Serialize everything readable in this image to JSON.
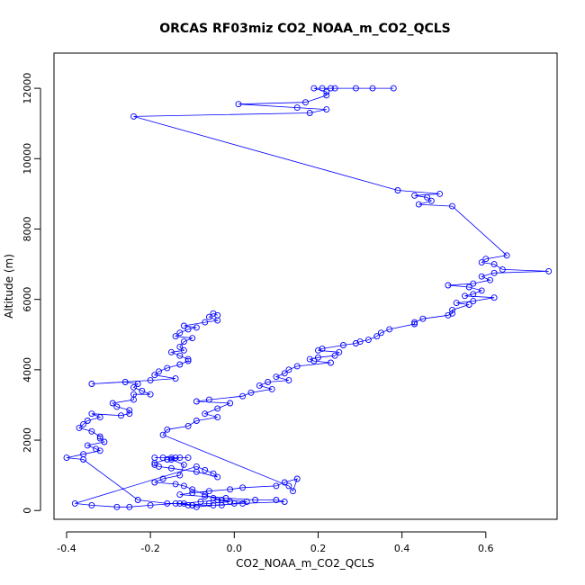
{
  "chart_data": {
    "type": "line",
    "title": "ORCAS RF03miz CO2_NOAA_m_CO2_QCLS",
    "xlabel": "CO2_NOAA_m_CO2_QCLS",
    "ylabel": "Altitude (m)",
    "xlim": [
      -0.43,
      0.77
    ],
    "ylim": [
      -250,
      13000
    ],
    "x_ticks": [
      -0.4,
      -0.2,
      0.0,
      0.2,
      0.4,
      0.6
    ],
    "x_tick_labels": [
      "-0.4",
      "-0.2",
      "0.0",
      "0.2",
      "0.4",
      "0.6"
    ],
    "y_ticks": [
      0,
      2000,
      4000,
      6000,
      8000,
      10000,
      12000
    ],
    "y_tick_labels": [
      "0",
      "2000",
      "4000",
      "6000",
      "8000",
      "10000",
      "12000"
    ],
    "grid": false,
    "legend": "none",
    "series": [
      {
        "color": "#0000ff",
        "marker": "open-circle",
        "points": [
          [
            0.38,
            12000
          ],
          [
            0.33,
            12000
          ],
          [
            0.29,
            12000
          ],
          [
            0.24,
            12000
          ],
          [
            0.23,
            12000
          ],
          [
            0.21,
            12000
          ],
          [
            0.19,
            12000
          ],
          [
            0.22,
            11900
          ],
          [
            0.22,
            11800
          ],
          [
            0.17,
            11600
          ],
          [
            0.01,
            11550
          ],
          [
            0.15,
            11450
          ],
          [
            0.22,
            11400
          ],
          [
            0.18,
            11300
          ],
          [
            -0.24,
            11200
          ],
          [
            0.39,
            9100
          ],
          [
            0.49,
            9000
          ],
          [
            0.43,
            8950
          ],
          [
            0.46,
            8900
          ],
          [
            0.47,
            8800
          ],
          [
            0.44,
            8700
          ],
          [
            0.52,
            8650
          ],
          [
            0.65,
            7250
          ],
          [
            0.6,
            7150
          ],
          [
            0.59,
            7050
          ],
          [
            0.62,
            7000
          ],
          [
            0.64,
            6850
          ],
          [
            0.75,
            6800
          ],
          [
            0.62,
            6750
          ],
          [
            0.59,
            6650
          ],
          [
            0.61,
            6550
          ],
          [
            0.57,
            6450
          ],
          [
            0.51,
            6400
          ],
          [
            0.56,
            6350
          ],
          [
            0.59,
            6250
          ],
          [
            0.57,
            6150
          ],
          [
            0.55,
            6100
          ],
          [
            0.62,
            6050
          ],
          [
            0.57,
            5950
          ],
          [
            0.53,
            5900
          ],
          [
            0.56,
            5850
          ],
          [
            0.52,
            5700
          ],
          [
            0.52,
            5600
          ],
          [
            0.51,
            5550
          ],
          [
            0.45,
            5450
          ],
          [
            0.43,
            5350
          ],
          [
            0.43,
            5300
          ],
          [
            0.37,
            5150
          ],
          [
            0.35,
            5050
          ],
          [
            0.34,
            4950
          ],
          [
            0.32,
            4850
          ],
          [
            0.3,
            4800
          ],
          [
            0.29,
            4750
          ],
          [
            0.26,
            4700
          ],
          [
            0.21,
            4600
          ],
          [
            0.2,
            4550
          ],
          [
            0.25,
            4500
          ],
          [
            0.24,
            4400
          ],
          [
            0.2,
            4350
          ],
          [
            0.18,
            4300
          ],
          [
            0.19,
            4250
          ],
          [
            0.23,
            4200
          ],
          [
            0.15,
            4100
          ],
          [
            0.13,
            4000
          ],
          [
            0.12,
            3900
          ],
          [
            0.1,
            3800
          ],
          [
            0.13,
            3700
          ],
          [
            0.08,
            3650
          ],
          [
            0.06,
            3550
          ],
          [
            0.09,
            3450
          ],
          [
            0.04,
            3350
          ],
          [
            0.02,
            3250
          ],
          [
            -0.06,
            3150
          ],
          [
            -0.09,
            3100
          ],
          [
            -0.01,
            3050
          ],
          [
            -0.04,
            2900
          ],
          [
            -0.07,
            2750
          ],
          [
            -0.04,
            2650
          ],
          [
            -0.09,
            2550
          ],
          [
            -0.11,
            2400
          ],
          [
            -0.16,
            2300
          ],
          [
            -0.17,
            2150
          ],
          [
            0.13,
            700
          ],
          [
            0.14,
            550
          ],
          [
            0.15,
            900
          ],
          [
            0.12,
            800
          ],
          [
            0.1,
            700
          ],
          [
            0.02,
            650
          ],
          [
            -0.01,
            600
          ],
          [
            -0.06,
            550
          ],
          [
            -0.1,
            500
          ],
          [
            -0.13,
            450
          ],
          [
            -0.07,
            400
          ],
          [
            -0.02,
            350
          ],
          [
            0.05,
            300
          ],
          [
            0.1,
            300
          ],
          [
            0.12,
            250
          ],
          [
            0.02,
            200
          ],
          [
            -0.05,
            150
          ],
          [
            -0.09,
            100
          ],
          [
            -0.1,
            150
          ],
          [
            -0.13,
            200
          ],
          [
            -0.08,
            250
          ],
          [
            -0.04,
            300
          ],
          [
            -0.01,
            250
          ],
          [
            -0.06,
            200
          ],
          [
            -0.11,
            150
          ],
          [
            -0.14,
            200
          ],
          [
            -0.2,
            150
          ],
          [
            -0.25,
            100
          ],
          [
            -0.28,
            100
          ],
          [
            -0.34,
            150
          ],
          [
            -0.38,
            200
          ],
          [
            -0.09,
            1250
          ],
          [
            -0.07,
            1150
          ],
          [
            -0.05,
            1050
          ],
          [
            -0.04,
            950
          ],
          [
            -0.09,
            1100
          ],
          [
            -0.15,
            1200
          ],
          [
            -0.18,
            1250
          ],
          [
            -0.19,
            1300
          ],
          [
            -0.19,
            1350
          ],
          [
            -0.16,
            1450
          ],
          [
            -0.14,
            1500
          ],
          [
            -0.15,
            1500
          ],
          [
            -0.17,
            1500
          ],
          [
            -0.19,
            1500
          ],
          [
            -0.11,
            1500
          ],
          [
            -0.13,
            1500
          ],
          [
            -0.15,
            1450
          ],
          [
            -0.12,
            1300
          ],
          [
            -0.13,
            1000
          ],
          [
            -0.17,
            900
          ],
          [
            -0.19,
            800
          ],
          [
            -0.14,
            750
          ],
          [
            -0.12,
            700
          ],
          [
            -0.1,
            600
          ],
          [
            -0.07,
            450
          ],
          [
            -0.05,
            350
          ],
          [
            -0.03,
            300
          ],
          [
            0.03,
            250
          ],
          [
            0.0,
            200
          ],
          [
            -0.03,
            150
          ],
          [
            -0.1,
            150
          ],
          [
            -0.12,
            200
          ],
          [
            -0.16,
            200
          ],
          [
            -0.23,
            300
          ],
          [
            -0.36,
            1450
          ],
          [
            -0.4,
            1500
          ],
          [
            -0.36,
            1600
          ],
          [
            -0.32,
            1700
          ],
          [
            -0.33,
            1750
          ],
          [
            -0.35,
            1850
          ],
          [
            -0.31,
            1950
          ],
          [
            -0.32,
            2050
          ],
          [
            -0.32,
            2100
          ],
          [
            -0.34,
            2250
          ],
          [
            -0.37,
            2350
          ],
          [
            -0.36,
            2450
          ],
          [
            -0.35,
            2550
          ],
          [
            -0.32,
            2650
          ],
          [
            -0.34,
            2750
          ],
          [
            -0.27,
            2700
          ],
          [
            -0.25,
            2750
          ],
          [
            -0.25,
            2850
          ],
          [
            -0.28,
            2950
          ],
          [
            -0.29,
            3050
          ],
          [
            -0.24,
            3150
          ],
          [
            -0.24,
            3300
          ],
          [
            -0.2,
            3300
          ],
          [
            -0.22,
            3400
          ],
          [
            -0.24,
            3500
          ],
          [
            -0.23,
            3600
          ],
          [
            -0.26,
            3650
          ],
          [
            -0.34,
            3600
          ],
          [
            -0.2,
            3700
          ],
          [
            -0.14,
            3750
          ],
          [
            -0.19,
            3850
          ],
          [
            -0.18,
            3950
          ],
          [
            -0.16,
            4050
          ],
          [
            -0.13,
            4150
          ],
          [
            -0.11,
            4250
          ],
          [
            -0.11,
            4300
          ],
          [
            -0.13,
            4400
          ],
          [
            -0.15,
            4500
          ],
          [
            -0.12,
            4550
          ],
          [
            -0.13,
            4650
          ],
          [
            -0.12,
            4800
          ],
          [
            -0.1,
            4900
          ],
          [
            -0.14,
            4950
          ],
          [
            -0.13,
            5050
          ],
          [
            -0.11,
            5150
          ],
          [
            -0.09,
            5200
          ],
          [
            -0.12,
            5250
          ],
          [
            -0.07,
            5350
          ],
          [
            -0.04,
            5400
          ],
          [
            -0.06,
            5500
          ],
          [
            -0.05,
            5600
          ],
          [
            -0.04,
            5550
          ]
        ]
      }
    ]
  }
}
